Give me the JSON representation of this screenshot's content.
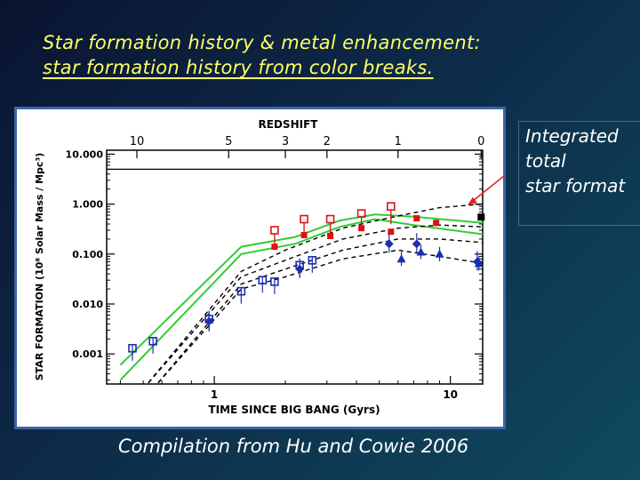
{
  "slide": {
    "title_line1": "Star formation history & metal enhancement:",
    "title_line2": " star formation history from color breaks.",
    "annotation_lines": [
      "Integrated",
      "total",
      "star format"
    ],
    "caption": "Compilation from Hu and Cowie 2006"
  },
  "colors": {
    "title": "#ffff66",
    "green_band": "#33cc33",
    "red_points": "#dd1111",
    "blue_points": "#1a2fb0",
    "arrow": "#e02020"
  },
  "chart_data": {
    "type": "scatter",
    "title": "REDSHIFT",
    "xlabel": "TIME SINCE BIG BANG (Gyrs)",
    "ylabel": "STAR FORMATION (10⁸ Solar Mass / Mpc³)",
    "x_scale": "log",
    "y_scale": "log",
    "xlim": [
      0.35,
      13.7
    ],
    "ylim": [
      0.00025,
      12
    ],
    "x_ticks": [
      {
        "v": 1,
        "label": "1"
      },
      {
        "v": 10,
        "label": "10"
      }
    ],
    "y_ticks": [
      {
        "v": 10,
        "label": "10.000"
      },
      {
        "v": 1,
        "label": "1.000"
      },
      {
        "v": 0.1,
        "label": "0.100"
      },
      {
        "v": 0.01,
        "label": "0.010"
      },
      {
        "v": 0.001,
        "label": "0.001"
      }
    ],
    "top_axis_ticks": [
      {
        "t": 0.47,
        "label": "10"
      },
      {
        "t": 1.15,
        "label": "5"
      },
      {
        "t": 2.0,
        "label": "3"
      },
      {
        "t": 3.0,
        "label": "2"
      },
      {
        "t": 6.0,
        "label": "1"
      },
      {
        "t": 13.5,
        "label": "0"
      }
    ],
    "reference_line_y": 5.0,
    "curves": [
      {
        "style": "green",
        "points": [
          [
            0.4,
            0.0006
          ],
          [
            1.3,
            0.14
          ],
          [
            2.2,
            0.22
          ],
          [
            3.4,
            0.47
          ],
          [
            4.8,
            0.62
          ],
          [
            7,
            0.56
          ],
          [
            13.7,
            0.42
          ]
        ]
      },
      {
        "style": "green",
        "points": [
          [
            0.4,
            0.0003
          ],
          [
            1.3,
            0.1
          ],
          [
            2.2,
            0.16
          ],
          [
            3.4,
            0.35
          ],
          [
            4.8,
            0.5
          ],
          [
            7,
            0.38
          ],
          [
            13.7,
            0.25
          ]
        ]
      },
      {
        "style": "black-dash",
        "points": [
          [
            0.5,
            0.0002
          ],
          [
            1.3,
            0.045
          ],
          [
            2,
            0.12
          ],
          [
            3.5,
            0.33
          ],
          [
            6,
            0.58
          ],
          [
            9,
            0.85
          ],
          [
            13.7,
            1.0
          ]
        ]
      },
      {
        "style": "black-dash",
        "points": [
          [
            0.5,
            0.0002
          ],
          [
            1.3,
            0.035
          ],
          [
            2,
            0.075
          ],
          [
            3.5,
            0.2
          ],
          [
            6,
            0.33
          ],
          [
            9,
            0.38
          ],
          [
            13.7,
            0.35
          ]
        ]
      },
      {
        "style": "black-dash",
        "points": [
          [
            0.55,
            0.0002
          ],
          [
            1.3,
            0.025
          ],
          [
            2,
            0.05
          ],
          [
            3.5,
            0.12
          ],
          [
            6,
            0.2
          ],
          [
            9,
            0.2
          ],
          [
            13.7,
            0.17
          ]
        ]
      },
      {
        "style": "black-dash",
        "points": [
          [
            0.55,
            0.0002
          ],
          [
            1.3,
            0.02
          ],
          [
            2,
            0.035
          ],
          [
            3.5,
            0.08
          ],
          [
            6,
            0.12
          ],
          [
            9,
            0.09
          ],
          [
            13.7,
            0.065
          ]
        ]
      }
    ],
    "series": [
      {
        "marker": "red-open-square",
        "points": [
          [
            1.8,
            0.3
          ],
          [
            2.4,
            0.5
          ],
          [
            3.1,
            0.5
          ],
          [
            4.2,
            0.65
          ],
          [
            5.6,
            0.9
          ]
        ]
      },
      {
        "marker": "red-filled-square",
        "points": [
          [
            1.8,
            0.14
          ],
          [
            2.4,
            0.24
          ],
          [
            3.1,
            0.23
          ],
          [
            4.2,
            0.33
          ],
          [
            5.6,
            0.28
          ],
          [
            7.2,
            0.52
          ],
          [
            8.7,
            0.42
          ]
        ]
      },
      {
        "marker": "blue-open-square",
        "points": [
          [
            0.45,
            0.0013
          ],
          [
            0.55,
            0.0018
          ],
          [
            0.95,
            0.005
          ],
          [
            1.3,
            0.018
          ],
          [
            1.6,
            0.03
          ],
          [
            1.8,
            0.028
          ],
          [
            2.3,
            0.06
          ],
          [
            2.6,
            0.075
          ]
        ]
      },
      {
        "marker": "blue-filled-diamond",
        "points": [
          [
            0.95,
            0.0045
          ],
          [
            2.3,
            0.05
          ],
          [
            5.5,
            0.16
          ],
          [
            7.2,
            0.16
          ],
          [
            13,
            0.07
          ]
        ]
      },
      {
        "marker": "blue-filled-triangle",
        "points": [
          [
            6.2,
            0.08
          ],
          [
            7.5,
            0.11
          ],
          [
            9,
            0.1
          ],
          [
            13.2,
            0.065
          ]
        ]
      },
      {
        "marker": "black-filled-square",
        "points": [
          [
            13.5,
            0.55
          ]
        ]
      }
    ]
  }
}
